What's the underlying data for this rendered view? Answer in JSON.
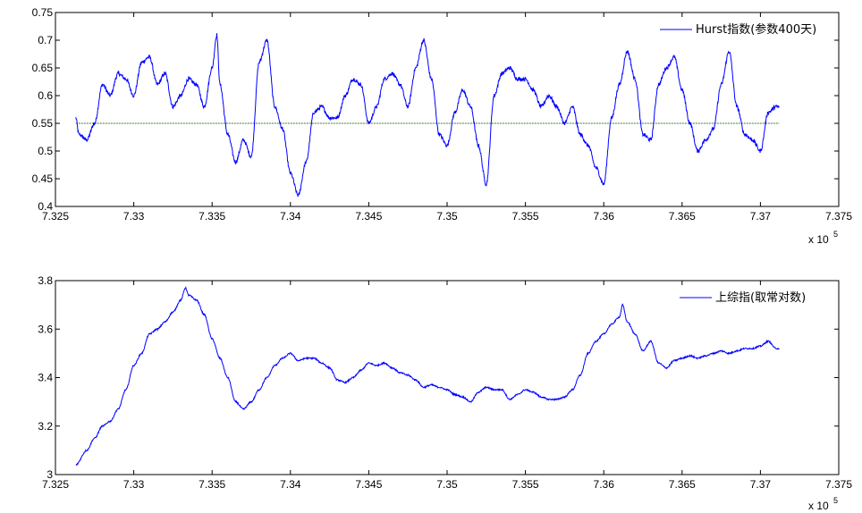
{
  "chart_data": [
    {
      "type": "line",
      "xlim": [
        732500,
        737500
      ],
      "ylim": [
        0.4,
        0.75
      ],
      "x_exponent_label": "x 10",
      "x_exponent_power": "5",
      "x_ticks": [
        "7.325",
        "7.33",
        "7.335",
        "7.34",
        "7.345",
        "7.35",
        "7.355",
        "7.36",
        "7.365",
        "7.37",
        "7.375"
      ],
      "y_ticks": [
        "0.4",
        "0.45",
        "0.5",
        "0.55",
        "0.6",
        "0.65",
        "0.7",
        "0.75"
      ],
      "legend_position": "top-right",
      "reference_line": {
        "y": 0.55,
        "color": "#3a7a3a"
      },
      "series": [
        {
          "name": "Hurst指数(参数400天)",
          "color": "#0000ff",
          "x": [
            732630,
            732650,
            732700,
            732750,
            732800,
            732850,
            732900,
            732950,
            733000,
            733050,
            733100,
            733150,
            733200,
            733250,
            733300,
            733350,
            733400,
            733450,
            733500,
            733530,
            733550,
            733600,
            733650,
            733700,
            733750,
            733800,
            733850,
            733900,
            733950,
            734000,
            734050,
            734100,
            734150,
            734200,
            734250,
            734300,
            734350,
            734400,
            734450,
            734500,
            734550,
            734600,
            734650,
            734700,
            734750,
            734800,
            734850,
            734900,
            734950,
            735000,
            735050,
            735100,
            735150,
            735200,
            735250,
            735300,
            735350,
            735400,
            735450,
            735500,
            735550,
            735600,
            735650,
            735700,
            735750,
            735800,
            735850,
            735900,
            735950,
            736000,
            736050,
            736100,
            736150,
            736200,
            736250,
            736300,
            736350,
            736400,
            736450,
            736500,
            736550,
            736600,
            736650,
            736700,
            736750,
            736800,
            736850,
            736900,
            736950,
            737000,
            737050,
            737100,
            737120
          ],
          "values": [
            0.56,
            0.53,
            0.52,
            0.55,
            0.62,
            0.6,
            0.64,
            0.63,
            0.6,
            0.66,
            0.67,
            0.62,
            0.64,
            0.58,
            0.6,
            0.63,
            0.62,
            0.58,
            0.65,
            0.71,
            0.62,
            0.53,
            0.48,
            0.52,
            0.49,
            0.66,
            0.7,
            0.58,
            0.54,
            0.46,
            0.42,
            0.48,
            0.57,
            0.58,
            0.56,
            0.56,
            0.6,
            0.63,
            0.62,
            0.55,
            0.58,
            0.63,
            0.64,
            0.62,
            0.58,
            0.65,
            0.7,
            0.63,
            0.53,
            0.51,
            0.57,
            0.61,
            0.58,
            0.51,
            0.44,
            0.6,
            0.64,
            0.65,
            0.63,
            0.63,
            0.61,
            0.58,
            0.6,
            0.58,
            0.55,
            0.58,
            0.53,
            0.51,
            0.47,
            0.44,
            0.56,
            0.62,
            0.68,
            0.63,
            0.53,
            0.52,
            0.62,
            0.65,
            0.67,
            0.61,
            0.55,
            0.5,
            0.52,
            0.54,
            0.62,
            0.68,
            0.58,
            0.53,
            0.52,
            0.5,
            0.57,
            0.58,
            0.58
          ]
        }
      ]
    },
    {
      "type": "line",
      "xlim": [
        732500,
        737500
      ],
      "ylim": [
        3.0,
        3.8
      ],
      "x_exponent_label": "x 10",
      "x_exponent_power": "5",
      "x_ticks": [
        "7.325",
        "7.33",
        "7.335",
        "7.34",
        "7.345",
        "7.35",
        "7.355",
        "7.36",
        "7.365",
        "7.37",
        "7.375"
      ],
      "y_ticks": [
        "3",
        "3.2",
        "3.4",
        "3.6",
        "3.8"
      ],
      "legend_position": "top-right",
      "series": [
        {
          "name": "上综指(取常对数)",
          "color": "#0000ff",
          "x": [
            732630,
            732700,
            732750,
            732800,
            732850,
            732900,
            732950,
            733000,
            733050,
            733100,
            733150,
            733200,
            733250,
            733300,
            733330,
            733350,
            733400,
            733450,
            733500,
            733550,
            733600,
            733650,
            733700,
            733750,
            733800,
            733850,
            733900,
            733950,
            734000,
            734050,
            734100,
            734150,
            734200,
            734250,
            734300,
            734350,
            734400,
            734450,
            734500,
            734550,
            734600,
            734650,
            734700,
            734750,
            734800,
            734850,
            734900,
            734950,
            735000,
            735050,
            735100,
            735150,
            735200,
            735250,
            735300,
            735350,
            735400,
            735450,
            735500,
            735550,
            735600,
            735650,
            735700,
            735750,
            735800,
            735850,
            735900,
            735950,
            736000,
            736050,
            736100,
            736120,
            736150,
            736200,
            736250,
            736300,
            736350,
            736400,
            736450,
            736500,
            736550,
            736600,
            736650,
            736700,
            736750,
            736800,
            736850,
            736900,
            736950,
            737000,
            737050,
            737100,
            737120
          ],
          "values": [
            3.04,
            3.1,
            3.15,
            3.2,
            3.22,
            3.27,
            3.35,
            3.45,
            3.5,
            3.58,
            3.6,
            3.63,
            3.67,
            3.72,
            3.77,
            3.74,
            3.72,
            3.66,
            3.56,
            3.48,
            3.4,
            3.3,
            3.27,
            3.3,
            3.35,
            3.4,
            3.45,
            3.48,
            3.5,
            3.47,
            3.48,
            3.48,
            3.46,
            3.44,
            3.39,
            3.38,
            3.4,
            3.43,
            3.46,
            3.45,
            3.46,
            3.44,
            3.42,
            3.41,
            3.39,
            3.36,
            3.37,
            3.36,
            3.35,
            3.33,
            3.32,
            3.3,
            3.34,
            3.36,
            3.35,
            3.35,
            3.31,
            3.33,
            3.35,
            3.34,
            3.32,
            3.31,
            3.31,
            3.32,
            3.35,
            3.41,
            3.5,
            3.55,
            3.58,
            3.62,
            3.65,
            3.7,
            3.63,
            3.58,
            3.51,
            3.55,
            3.46,
            3.44,
            3.47,
            3.48,
            3.49,
            3.48,
            3.49,
            3.5,
            3.51,
            3.5,
            3.51,
            3.52,
            3.52,
            3.53,
            3.55,
            3.52,
            3.52
          ]
        }
      ]
    }
  ]
}
